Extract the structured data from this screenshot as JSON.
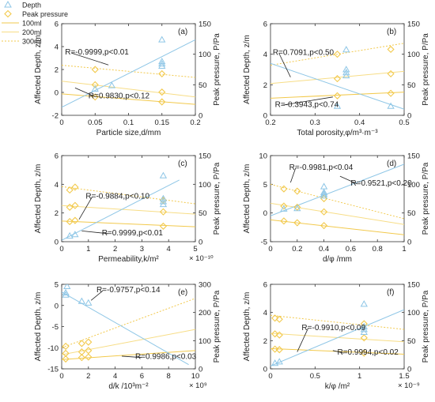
{
  "legend": {
    "items": [
      {
        "label": "Depth",
        "kind": "triangle",
        "color": "#8ec6e6"
      },
      {
        "label": "Peak pressure",
        "kind": "diamond",
        "color": "#f2c94c"
      },
      {
        "label": "100ml",
        "kind": "solid",
        "color": "#f2c94c"
      },
      {
        "label": "200ml",
        "kind": "solid-light",
        "color": "#f7dd86"
      },
      {
        "label": "300ml",
        "kind": "dotted",
        "color": "#f2c94c"
      }
    ]
  },
  "colors": {
    "depth": "#8ec6e6",
    "pressure": "#f2c94c",
    "pressure_light": "#f7dd86",
    "axis": "#333333"
  },
  "chart_data": [
    {
      "type": "scatter",
      "panel": "(a)",
      "xlabel": "Particle size,d/mm",
      "ylabel_left": "Affected Depth, z/m",
      "ylabel_right": "Peak pressure, P/Pa",
      "xlim": [
        0,
        0.2
      ],
      "xticks": [
        0,
        0.05,
        0.1,
        0.15,
        0.2
      ],
      "xtick_labels": [
        "0",
        "0.05",
        "0.1",
        "0.15",
        "0.2"
      ],
      "ylim_left": [
        -2,
        6
      ],
      "yticks_left": [
        -2,
        0,
        2,
        4,
        6
      ],
      "ytick_labels_left": [
        "-2",
        "0",
        "2",
        "4",
        "6"
      ],
      "ylim_right": [
        0,
        150
      ],
      "yticks_right": [
        0,
        50,
        100,
        150
      ],
      "ytick_labels_right": [
        "0",
        "50",
        "100",
        "150"
      ],
      "x_multiplier": "",
      "depth_points": [
        [
          0.05,
          0.3
        ],
        [
          0.075,
          0.6
        ],
        [
          0.15,
          2.3
        ],
        [
          0.15,
          2.5
        ],
        [
          0.15,
          2.7
        ],
        [
          0.15,
          4.6
        ]
      ],
      "depth_fit": [
        [
          0,
          -1.3
        ],
        [
          0.2,
          4.6
        ]
      ],
      "pressure_points": {
        "100ml": [
          [
            0.05,
            30
          ],
          [
            0.15,
            22
          ]
        ],
        "200ml": [
          [
            0.05,
            50
          ],
          [
            0.15,
            38
          ]
        ],
        "300ml": [
          [
            0.05,
            75
          ],
          [
            0.15,
            68
          ]
        ]
      },
      "pressure_fits": {
        "100ml": [
          [
            0,
            35
          ],
          [
            0.2,
            18
          ]
        ],
        "200ml": [
          [
            0,
            56
          ],
          [
            0.2,
            30
          ]
        ],
        "300ml": [
          [
            0,
            82
          ],
          [
            0.2,
            62
          ]
        ]
      },
      "annotations": [
        {
          "text": "R=-0.9999,p<0.01",
          "at": [
            0.005,
            3.3
          ],
          "arrow_to": [
            0.07,
            2.4
          ]
        },
        {
          "text": "R=0.9830,p<0.12",
          "at": [
            0.04,
            -0.5
          ],
          "arrow_to": [
            0.02,
            0.4
          ]
        }
      ]
    },
    {
      "type": "scatter",
      "panel": "(b)",
      "xlabel": "Total porosity,φ/m³·m⁻³",
      "ylabel_left": "Affected Depth, z/m",
      "ylabel_right": "Peak pressure, P/Pa",
      "xlim": [
        0.2,
        0.5
      ],
      "xticks": [
        0.2,
        0.3,
        0.4,
        0.5
      ],
      "xtick_labels": [
        "0.2",
        "0.3",
        "0.4",
        "0.5"
      ],
      "ylim_left": [
        0,
        6
      ],
      "yticks_left": [
        0,
        2,
        4,
        6
      ],
      "ytick_labels_left": [
        "0",
        "2",
        "4",
        "6"
      ],
      "ylim_right": [
        0,
        150
      ],
      "yticks_right": [
        0,
        50,
        100,
        150
      ],
      "ytick_labels_right": [
        "0",
        "50",
        "100",
        "150"
      ],
      "x_multiplier": "",
      "depth_points": [
        [
          0.35,
          0.6
        ],
        [
          0.37,
          2.6
        ],
        [
          0.37,
          2.8
        ],
        [
          0.37,
          3.0
        ],
        [
          0.37,
          4.3
        ],
        [
          0.47,
          0.6
        ]
      ],
      "depth_fit": [
        [
          0.2,
          3.4
        ],
        [
          0.5,
          0.4
        ]
      ],
      "pressure_points": {
        "100ml": [
          [
            0.35,
            32
          ],
          [
            0.47,
            36
          ]
        ],
        "200ml": [
          [
            0.35,
            60
          ],
          [
            0.47,
            68
          ]
        ],
        "300ml": [
          [
            0.35,
            100
          ],
          [
            0.47,
            108
          ]
        ]
      },
      "pressure_fits": {
        "100ml": [
          [
            0.2,
            28
          ],
          [
            0.5,
            38
          ]
        ],
        "200ml": [
          [
            0.2,
            52
          ],
          [
            0.5,
            72
          ]
        ],
        "300ml": [
          [
            0.2,
            82
          ],
          [
            0.5,
            118
          ]
        ]
      },
      "annotations": [
        {
          "text": "R=0.7091,p<0.50",
          "at": [
            0.205,
            3.95
          ],
          "arrow_to": [
            0.245,
            2.5
          ]
        },
        {
          "text": "R=-0.3943,p<0.74",
          "at": [
            0.21,
            0.55
          ],
          "arrow_to": [
            0.34,
            1.2
          ]
        }
      ]
    },
    {
      "type": "scatter",
      "panel": "(c)",
      "xlabel": "Permeability,k/m²",
      "ylabel_left": "Affected Depth, z/m",
      "ylabel_right": "Peak pressure, P/Pa",
      "xlim": [
        0,
        5
      ],
      "xticks": [
        0,
        1,
        2,
        3,
        4,
        5
      ],
      "xtick_labels": [
        "0",
        "1",
        "2",
        "3",
        "4",
        "5"
      ],
      "ylim_left": [
        0,
        6
      ],
      "yticks_left": [
        0,
        2,
        4,
        6
      ],
      "ytick_labels_left": [
        "0",
        "2",
        "4",
        "6"
      ],
      "ylim_right": [
        0,
        150
      ],
      "yticks_right": [
        0,
        50,
        100,
        150
      ],
      "ytick_labels_right": [
        "0",
        "50",
        "100",
        "150"
      ],
      "x_multiplier": "× 10⁻¹⁰",
      "depth_points": [
        [
          0.3,
          0.4
        ],
        [
          0.5,
          0.5
        ],
        [
          3.8,
          2.6
        ],
        [
          3.8,
          2.8
        ],
        [
          3.8,
          3.0
        ],
        [
          3.8,
          4.6
        ]
      ],
      "depth_fit": [
        [
          0,
          0.1
        ],
        [
          4.4,
          4.3
        ]
      ],
      "pressure_points": {
        "100ml": [
          [
            0.3,
            35
          ],
          [
            0.5,
            37
          ],
          [
            3.8,
            27
          ]
        ],
        "200ml": [
          [
            0.3,
            60
          ],
          [
            0.5,
            63
          ],
          [
            3.8,
            52
          ]
        ],
        "300ml": [
          [
            0.3,
            90
          ],
          [
            0.5,
            95
          ],
          [
            3.8,
            72
          ]
        ]
      },
      "pressure_fits": {
        "100ml": [
          [
            0,
            36
          ],
          [
            5,
            26
          ]
        ],
        "200ml": [
          [
            0,
            63
          ],
          [
            5,
            48
          ]
        ],
        "300ml": [
          [
            0,
            96
          ],
          [
            5,
            66
          ]
        ]
      },
      "annotations": [
        {
          "text": "R=-0.9884,p<0.10",
          "at": [
            0.9,
            3.0
          ],
          "arrow_to": [
            0.65,
            1.55
          ]
        },
        {
          "text": "R=0.9999,p<0.01",
          "at": [
            1.5,
            0.45
          ],
          "arrow_to": [
            0.75,
            0.75
          ]
        }
      ]
    },
    {
      "type": "scatter",
      "panel": "(d)",
      "xlabel": "d/φ /mm",
      "ylabel_left": "Affected Depth, z/m",
      "ylabel_right": "Peak pressure, P/Pa",
      "xlim": [
        0,
        1
      ],
      "xticks": [
        0,
        0.2,
        0.4,
        0.6,
        0.8,
        1
      ],
      "xtick_labels": [
        "0",
        "0.2",
        "0.4",
        "0.6",
        "0.8",
        "1"
      ],
      "ylim_left": [
        -5,
        10
      ],
      "yticks_left": [
        -5,
        0,
        5,
        10
      ],
      "ytick_labels_left": [
        "-5",
        "0",
        "5",
        "10"
      ],
      "ylim_right": [
        0,
        150
      ],
      "yticks_right": [
        0,
        50,
        100,
        150
      ],
      "ytick_labels_right": [
        "0",
        "50",
        "100",
        "150"
      ],
      "x_multiplier": "",
      "depth_points": [
        [
          0.1,
          0.7
        ],
        [
          0.2,
          0.8
        ],
        [
          0.4,
          3.0
        ],
        [
          0.4,
          3.3
        ],
        [
          0.4,
          3.6
        ],
        [
          0.4,
          4.6
        ]
      ],
      "depth_fit": [
        [
          0,
          -0.5
        ],
        [
          1,
          8.5
        ]
      ],
      "pressure_points": {
        "100ml": [
          [
            0.1,
            36
          ],
          [
            0.2,
            33
          ],
          [
            0.4,
            28
          ]
        ],
        "200ml": [
          [
            0.1,
            62
          ],
          [
            0.2,
            60
          ],
          [
            0.4,
            52
          ]
        ],
        "300ml": [
          [
            0.1,
            92
          ],
          [
            0.2,
            88
          ],
          [
            0.4,
            75
          ]
        ]
      },
      "pressure_fits": {
        "100ml": [
          [
            0,
            38
          ],
          [
            1,
            12
          ]
        ],
        "200ml": [
          [
            0,
            67
          ],
          [
            1,
            30
          ]
        ],
        "300ml": [
          [
            0,
            100
          ],
          [
            1,
            40
          ]
        ]
      },
      "annotations": [
        {
          "text": "R=-0.9981,p<0.04",
          "at": [
            0.14,
            7.5
          ],
          "arrow_to": [
            0.15,
            5.3
          ]
        },
        {
          "text": "R=0.9521,p<0.20",
          "at": [
            0.6,
            4.8
          ],
          "arrow_to": [
            0.52,
            6.4
          ]
        }
      ]
    },
    {
      "type": "scatter",
      "panel": "(e)",
      "xlabel": "d/k /10³m⁻²",
      "ylabel_left": "Affected Depth, z/m",
      "ylabel_right": "Peak pressure, P/Pa",
      "xlim": [
        0,
        10
      ],
      "xticks": [
        0,
        2,
        4,
        6,
        8,
        10
      ],
      "xtick_labels": [
        "0",
        "2",
        "4",
        "6",
        "8",
        "10"
      ],
      "ylim_left": [
        -15,
        5
      ],
      "yticks_left": [
        -15,
        -10,
        -5,
        0,
        5
      ],
      "ytick_labels_left": [
        "-15",
        "-10",
        "-5",
        "0",
        "5"
      ],
      "ylim_right": [
        0,
        300
      ],
      "yticks_right": [
        0,
        100,
        200,
        300
      ],
      "ytick_labels_right": [
        "0",
        "100",
        "200",
        "300"
      ],
      "x_multiplier": "× 10⁹",
      "depth_points": [
        [
          0.3,
          2.5
        ],
        [
          0.3,
          3.0
        ],
        [
          0.4,
          4.5
        ],
        [
          1.5,
          1.0
        ],
        [
          2.0,
          0.6
        ]
      ],
      "depth_fit": [
        [
          0,
          3.2
        ],
        [
          9.5,
          -14.0
        ]
      ],
      "pressure_points": {
        "100ml": [
          [
            0.3,
            35
          ],
          [
            1.5,
            40
          ],
          [
            2.0,
            42
          ]
        ],
        "200ml": [
          [
            0.3,
            55
          ],
          [
            1.5,
            60
          ],
          [
            2.0,
            65
          ]
        ],
        "300ml": [
          [
            0.3,
            80
          ],
          [
            1.5,
            90
          ],
          [
            2.0,
            95
          ]
        ]
      },
      "pressure_fits": {
        "100ml": [
          [
            0,
            33
          ],
          [
            10,
            65
          ]
        ],
        "200ml": [
          [
            0,
            50
          ],
          [
            10,
            140
          ]
        ],
        "300ml": [
          [
            0,
            75
          ],
          [
            10,
            250
          ]
        ]
      },
      "annotations": [
        {
          "text": "R=-0.9757,p<0.14",
          "at": [
            2.6,
            3.1
          ],
          "arrow_to": [
            2.2,
            1.2
          ]
        },
        {
          "text": "R=0.9986,p<0.03",
          "at": [
            5.5,
            -12.7
          ],
          "arrow_to": [
            4.5,
            -12.0
          ]
        }
      ]
    },
    {
      "type": "scatter",
      "panel": "(f)",
      "xlabel": "k/φ /m²",
      "ylabel_left": "Affected Depth, z/m",
      "ylabel_right": "Peak pressure, P/Pa",
      "xlim": [
        0,
        1.5
      ],
      "xticks": [
        0,
        0.5,
        1,
        1.5
      ],
      "xtick_labels": [
        "0",
        "0.5",
        "1",
        "1.5"
      ],
      "ylim_left": [
        0,
        6
      ],
      "yticks_left": [
        0,
        2,
        4,
        6
      ],
      "ytick_labels_left": [
        "0",
        "2",
        "4",
        "6"
      ],
      "ylim_right": [
        0,
        150
      ],
      "yticks_right": [
        0,
        50,
        100,
        150
      ],
      "ytick_labels_right": [
        "0",
        "50",
        "100",
        "150"
      ],
      "x_multiplier": "× 10⁻⁹",
      "depth_points": [
        [
          0.05,
          0.4
        ],
        [
          0.1,
          0.5
        ],
        [
          1.05,
          2.6
        ],
        [
          1.05,
          2.8
        ],
        [
          1.05,
          3.0
        ],
        [
          1.05,
          4.6
        ]
      ],
      "depth_fit": [
        [
          0,
          0.2
        ],
        [
          1.5,
          4.2
        ]
      ],
      "pressure_points": {
        "100ml": [
          [
            0.05,
            35
          ],
          [
            0.1,
            34
          ],
          [
            1.05,
            28
          ]
        ],
        "200ml": [
          [
            0.05,
            62
          ],
          [
            0.1,
            60
          ],
          [
            1.05,
            55
          ]
        ],
        "300ml": [
          [
            0.05,
            90
          ],
          [
            0.1,
            88
          ],
          [
            1.05,
            80
          ]
        ]
      },
      "pressure_fits": {
        "100ml": [
          [
            0,
            36
          ],
          [
            1.5,
            26
          ]
        ],
        "200ml": [
          [
            0,
            63
          ],
          [
            1.5,
            48
          ]
        ],
        "300ml": [
          [
            0,
            95
          ],
          [
            1.5,
            70
          ]
        ]
      },
      "annotations": [
        {
          "text": "R=-0.9910,p<0.09",
          "at": [
            0.35,
            2.75
          ],
          "arrow_to": [
            0.3,
            1.2
          ]
        },
        {
          "text": "R=0.9994,p<0.02",
          "at": [
            0.75,
            1.0
          ],
          "arrow_to": [
            0.7,
            1.3
          ]
        }
      ]
    }
  ]
}
